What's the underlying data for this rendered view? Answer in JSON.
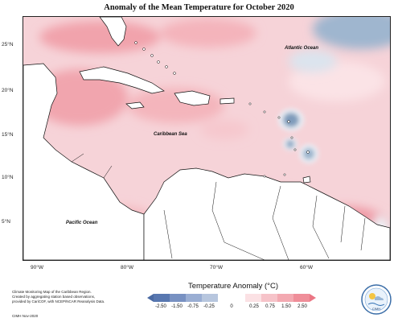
{
  "map": {
    "title": "Anomaly of the Mean Temperature for October 2020",
    "lat_labels": [
      "25°N",
      "20°N",
      "15°N",
      "10°N",
      "5°N"
    ],
    "lon_labels": [
      "90°W",
      "80°W",
      "70°W",
      "60°W"
    ],
    "labels": {
      "atlantic": "Atlantic Ocean",
      "caribbean": "Caribbean Sea",
      "pacific": "Pacific Ocean"
    }
  },
  "legend": {
    "title": "Temperature Anomaly (°C)",
    "ticks": [
      "-2.50",
      "-1.50",
      "-0.75",
      "-0.25",
      "0",
      "0.25",
      "0.75",
      "1.50",
      "2.50"
    ],
    "colors": {
      "cold_extreme": "#4a6aa3",
      "cool": "#9aaed3",
      "neutral": "#ffffff",
      "warm": "#f3a9b1",
      "warm_extreme": "#eb7684"
    }
  },
  "footer": {
    "note_lines": [
      "Climate Monitoring Map of the Caribbean Region.",
      "Created by aggregating station based observations,",
      "provided by CariCOF, with NCEP/NCAR Reanalysis Data."
    ],
    "credit": "CIMH Nov-2020",
    "logo_text": "CIMH"
  }
}
